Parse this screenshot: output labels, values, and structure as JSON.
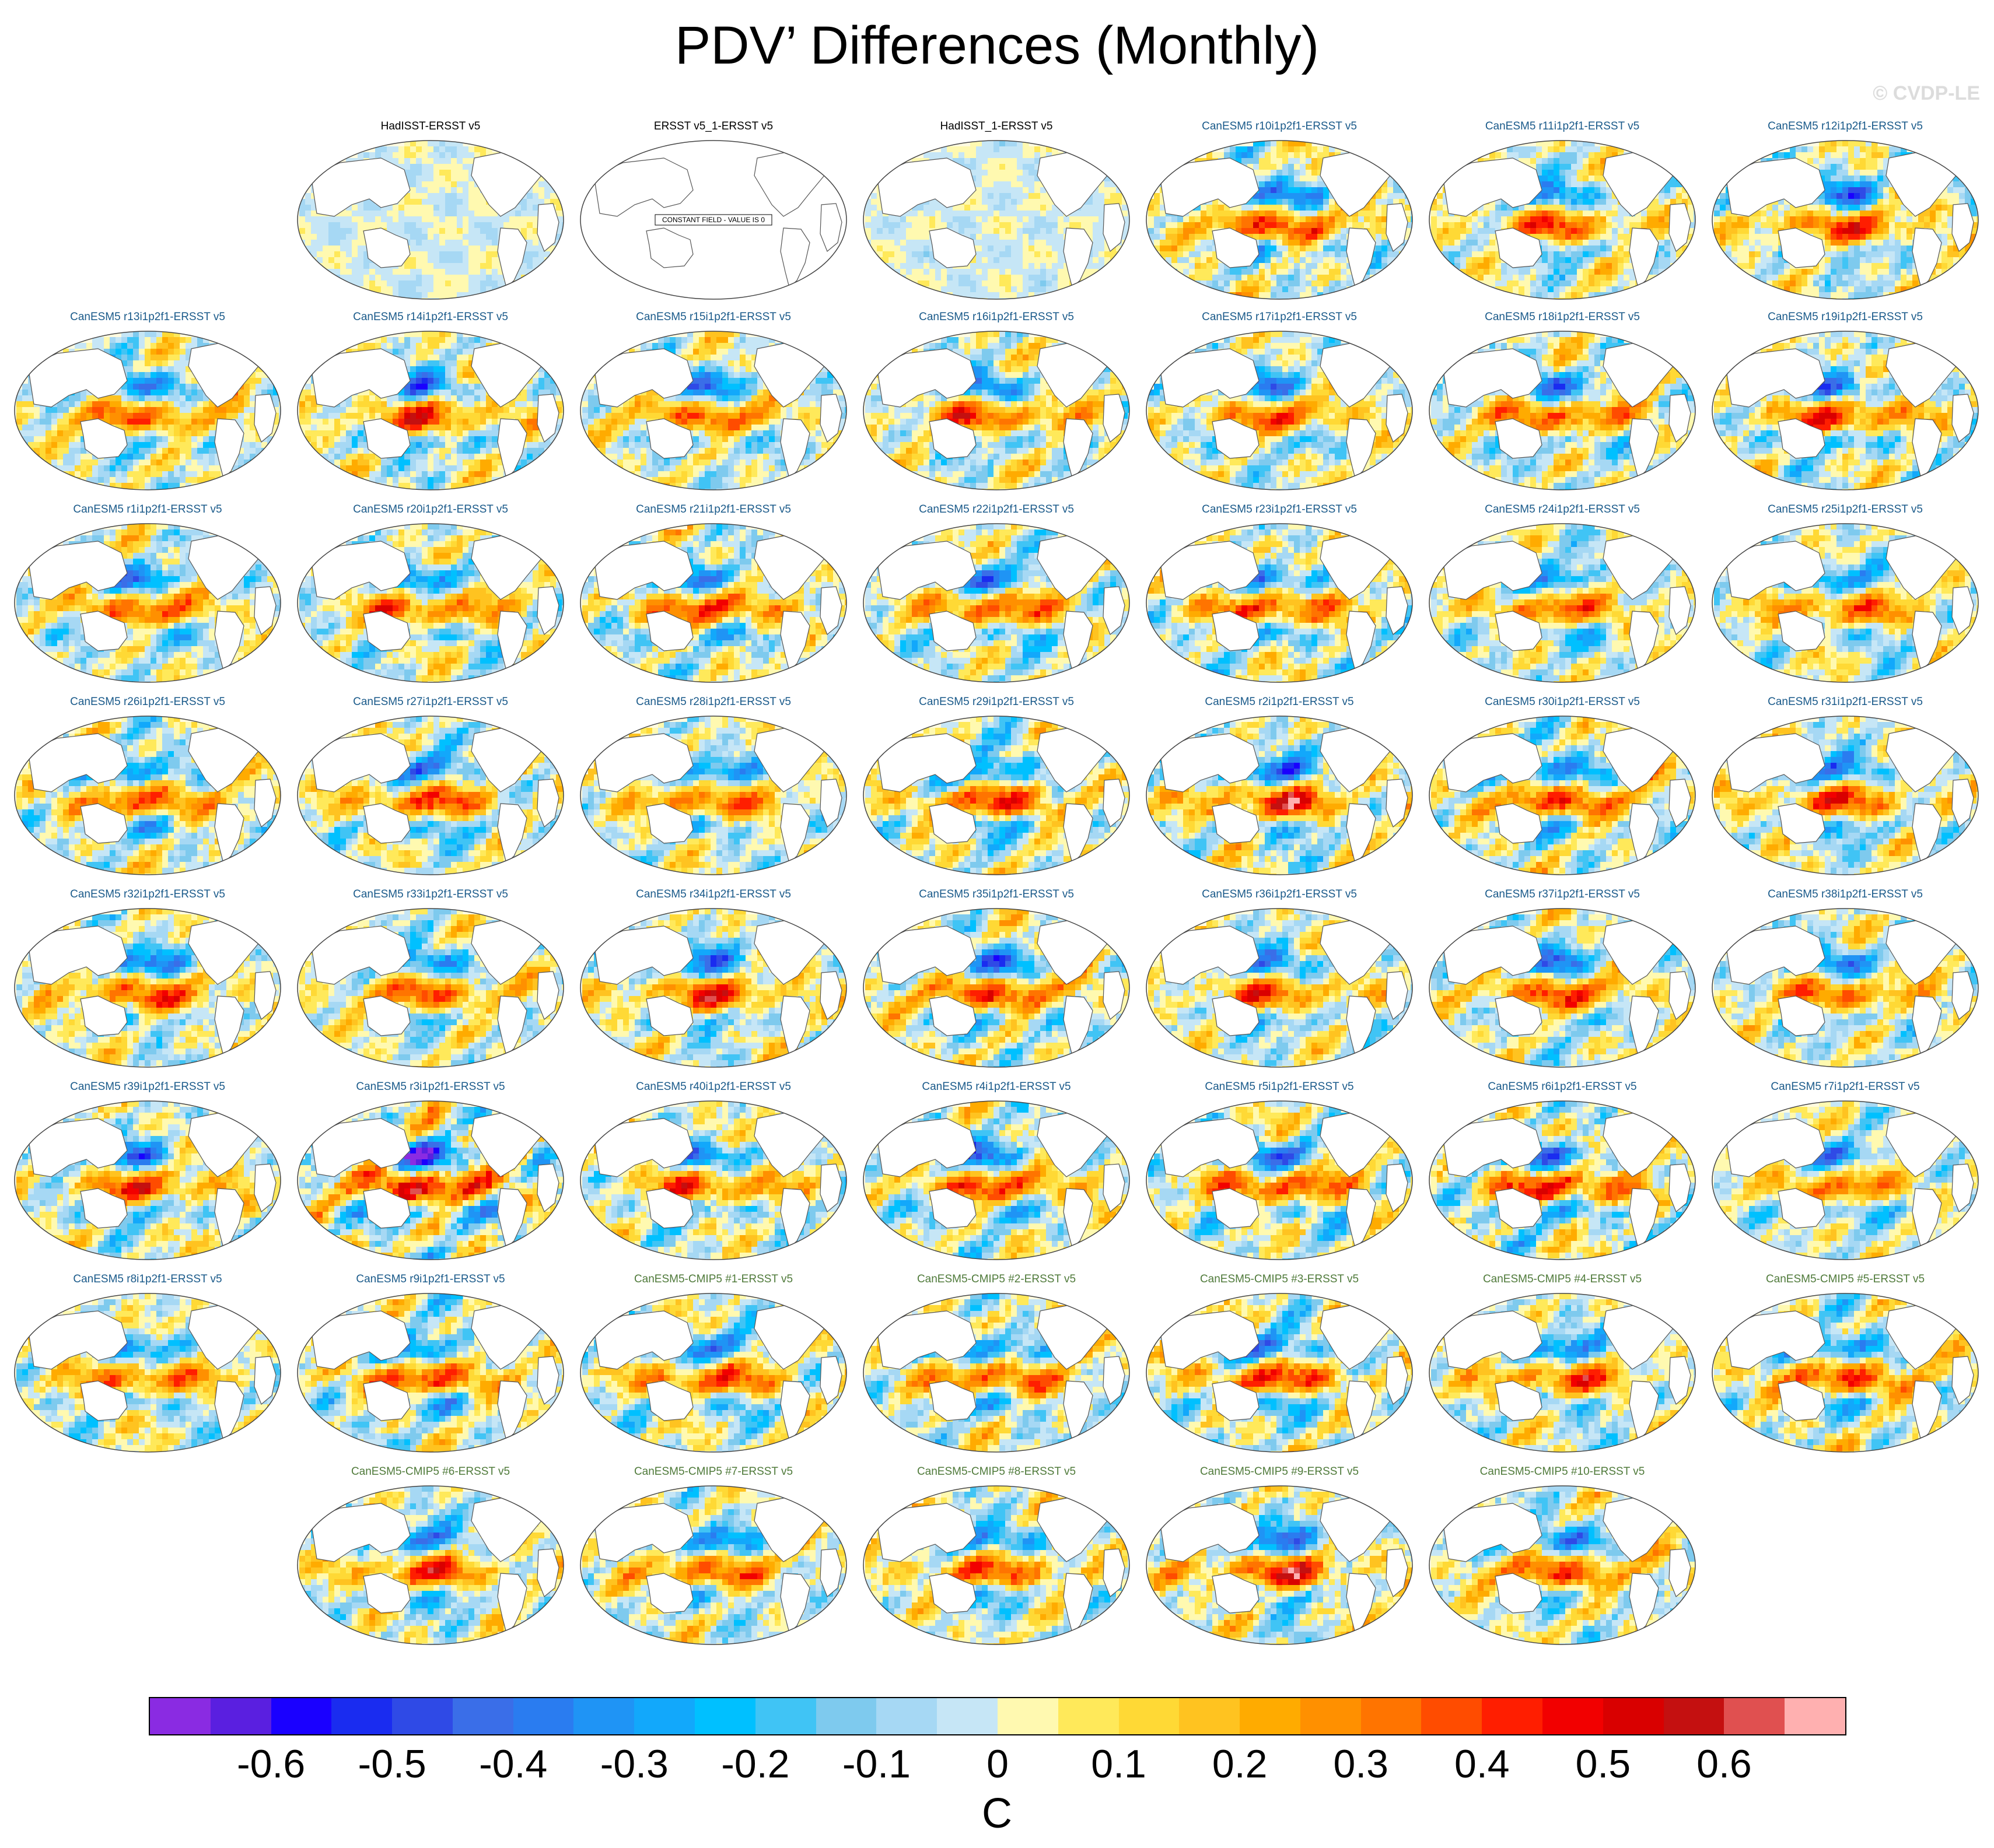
{
  "title": "PDV’ Differences (Monthly)",
  "watermark": "© CVDP-LE",
  "colors": {
    "obs_title": "#000000",
    "canesm5_title": "#1a5a8a",
    "cmip5_title": "#4f7a3a",
    "map_outline": "#444444",
    "coast": "#555555"
  },
  "chart_data": {
    "type": "heatmap",
    "title": "PDV’ Differences (Monthly)",
    "colorbar": {
      "units": "C",
      "tick_labels": [
        "-0.6",
        "-0.5",
        "-0.4",
        "-0.3",
        "-0.2",
        "-0.1",
        "0",
        "0.1",
        "0.2",
        "0.3",
        "0.4",
        "0.5",
        "0.6"
      ],
      "range": [
        -0.7,
        0.7
      ],
      "step": 0.05,
      "colors": [
        "#8a2be2",
        "#5a1fe0",
        "#1a00ff",
        "#1a2cf0",
        "#2f4ae6",
        "#3a6ee8",
        "#2a7cf0",
        "#1f94f5",
        "#12a8fb",
        "#00c0ff",
        "#40c4f5",
        "#7ecaee",
        "#a6d8f4",
        "#c6e6f6",
        "#fff9b0",
        "#ffe95a",
        "#ffd935",
        "#ffc320",
        "#ffab00",
        "#ff9000",
        "#ff7400",
        "#ff4c00",
        "#ff1e00",
        "#f20000",
        "#d90000",
        "#c41010",
        "#e05050",
        "#ffb0b0"
      ]
    },
    "rows": [
      [
        {
          "label": "HadISST-ERSST v5",
          "group": "obs",
          "intensity": 0.35,
          "seed": 1,
          "constant": false
        },
        {
          "label": "ERSST v5_1-ERSST v5",
          "group": "obs",
          "intensity": 0,
          "seed": 2,
          "constant": true,
          "note": "CONSTANT FIELD - VALUE IS 0"
        },
        {
          "label": "HadISST_1-ERSST v5",
          "group": "obs",
          "intensity": 0.35,
          "seed": 3,
          "constant": false
        },
        {
          "label": "CanESM5 r10i1p2f1-ERSST v5",
          "group": "canesm5",
          "intensity": 0.8,
          "seed": 4
        },
        {
          "label": "CanESM5 r11i1p2f1-ERSST v5",
          "group": "canesm5",
          "intensity": 0.7,
          "seed": 5
        },
        {
          "label": "CanESM5 r12i1p2f1-ERSST v5",
          "group": "canesm5",
          "intensity": 0.75,
          "seed": 6
        }
      ],
      [
        {
          "label": "CanESM5 r13i1p2f1-ERSST v5",
          "group": "canesm5",
          "intensity": 0.7,
          "seed": 7
        },
        {
          "label": "CanESM5 r14i1p2f1-ERSST v5",
          "group": "canesm5",
          "intensity": 0.75,
          "seed": 8
        },
        {
          "label": "CanESM5 r15i1p2f1-ERSST v5",
          "group": "canesm5",
          "intensity": 0.7,
          "seed": 9
        },
        {
          "label": "CanESM5 r16i1p2f1-ERSST v5",
          "group": "canesm5",
          "intensity": 0.75,
          "seed": 10
        },
        {
          "label": "CanESM5 r17i1p2f1-ERSST v5",
          "group": "canesm5",
          "intensity": 0.7,
          "seed": 11
        },
        {
          "label": "CanESM5 r18i1p2f1-ERSST v5",
          "group": "canesm5",
          "intensity": 0.75,
          "seed": 12
        },
        {
          "label": "CanESM5 r19i1p2f1-ERSST v5",
          "group": "canesm5",
          "intensity": 0.8,
          "seed": 13
        }
      ],
      [
        {
          "label": "CanESM5 r1i1p2f1-ERSST v5",
          "group": "canesm5",
          "intensity": 0.7,
          "seed": 14
        },
        {
          "label": "CanESM5 r20i1p2f1-ERSST v5",
          "group": "canesm5",
          "intensity": 0.75,
          "seed": 15
        },
        {
          "label": "CanESM5 r21i1p2f1-ERSST v5",
          "group": "canesm5",
          "intensity": 0.8,
          "seed": 16
        },
        {
          "label": "CanESM5 r22i1p2f1-ERSST v5",
          "group": "canesm5",
          "intensity": 0.75,
          "seed": 17
        },
        {
          "label": "CanESM5 r23i1p2f1-ERSST v5",
          "group": "canesm5",
          "intensity": 0.8,
          "seed": 18
        },
        {
          "label": "CanESM5 r24i1p2f1-ERSST v5",
          "group": "canesm5",
          "intensity": 0.7,
          "seed": 19
        },
        {
          "label": "CanESM5 r25i1p2f1-ERSST v5",
          "group": "canesm5",
          "intensity": 0.7,
          "seed": 20
        }
      ],
      [
        {
          "label": "CanESM5 r26i1p2f1-ERSST v5",
          "group": "canesm5",
          "intensity": 0.75,
          "seed": 21
        },
        {
          "label": "CanESM5 r27i1p2f1-ERSST v5",
          "group": "canesm5",
          "intensity": 0.75,
          "seed": 22
        },
        {
          "label": "CanESM5 r28i1p2f1-ERSST v5",
          "group": "canesm5",
          "intensity": 0.7,
          "seed": 23
        },
        {
          "label": "CanESM5 r29i1p2f1-ERSST v5",
          "group": "canesm5",
          "intensity": 0.8,
          "seed": 24
        },
        {
          "label": "CanESM5 r2i1p2f1-ERSST v5",
          "group": "canesm5",
          "intensity": 0.85,
          "seed": 25
        },
        {
          "label": "CanESM5 r30i1p2f1-ERSST v5",
          "group": "canesm5",
          "intensity": 0.8,
          "seed": 26
        },
        {
          "label": "CanESM5 r31i1p2f1-ERSST v5",
          "group": "canesm5",
          "intensity": 0.75,
          "seed": 27
        }
      ],
      [
        {
          "label": "CanESM5 r32i1p2f1-ERSST v5",
          "group": "canesm5",
          "intensity": 0.75,
          "seed": 28
        },
        {
          "label": "CanESM5 r33i1p2f1-ERSST v5",
          "group": "canesm5",
          "intensity": 0.7,
          "seed": 29
        },
        {
          "label": "CanESM5 r34i1p2f1-ERSST v5",
          "group": "canesm5",
          "intensity": 0.75,
          "seed": 30
        },
        {
          "label": "CanESM5 r35i1p2f1-ERSST v5",
          "group": "canesm5",
          "intensity": 0.8,
          "seed": 31
        },
        {
          "label": "CanESM5 r36i1p2f1-ERSST v5",
          "group": "canesm5",
          "intensity": 0.7,
          "seed": 32
        },
        {
          "label": "CanESM5 r37i1p2f1-ERSST v5",
          "group": "canesm5",
          "intensity": 0.75,
          "seed": 33
        },
        {
          "label": "CanESM5 r38i1p2f1-ERSST v5",
          "group": "canesm5",
          "intensity": 0.7,
          "seed": 34
        }
      ],
      [
        {
          "label": "CanESM5 r39i1p2f1-ERSST v5",
          "group": "canesm5",
          "intensity": 0.75,
          "seed": 35
        },
        {
          "label": "CanESM5 r3i1p2f1-ERSST v5",
          "group": "canesm5",
          "intensity": 1.0,
          "seed": 36
        },
        {
          "label": "CanESM5 r40i1p2f1-ERSST v5",
          "group": "canesm5",
          "intensity": 0.75,
          "seed": 37
        },
        {
          "label": "CanESM5 r4i1p2f1-ERSST v5",
          "group": "canesm5",
          "intensity": 0.8,
          "seed": 38
        },
        {
          "label": "CanESM5 r5i1p2f1-ERSST v5",
          "group": "canesm5",
          "intensity": 0.8,
          "seed": 39
        },
        {
          "label": "CanESM5 r6i1p2f1-ERSST v5",
          "group": "canesm5",
          "intensity": 0.9,
          "seed": 40
        },
        {
          "label": "CanESM5 r7i1p2f1-ERSST v5",
          "group": "canesm5",
          "intensity": 0.65,
          "seed": 41
        }
      ],
      [
        {
          "label": "CanESM5 r8i1p2f1-ERSST v5",
          "group": "canesm5",
          "intensity": 0.7,
          "seed": 42
        },
        {
          "label": "CanESM5 r9i1p2f1-ERSST v5",
          "group": "canesm5",
          "intensity": 0.8,
          "seed": 43
        },
        {
          "label": "CanESM5-CMIP5 #1-ERSST v5",
          "group": "cmip5",
          "intensity": 0.75,
          "seed": 44
        },
        {
          "label": "CanESM5-CMIP5 #2-ERSST v5",
          "group": "cmip5",
          "intensity": 0.75,
          "seed": 45
        },
        {
          "label": "CanESM5-CMIP5 #3-ERSST v5",
          "group": "cmip5",
          "intensity": 0.8,
          "seed": 46
        },
        {
          "label": "CanESM5-CMIP5 #4-ERSST v5",
          "group": "cmip5",
          "intensity": 0.75,
          "seed": 47
        },
        {
          "label": "CanESM5-CMIP5 #5-ERSST v5",
          "group": "cmip5",
          "intensity": 0.8,
          "seed": 48
        }
      ],
      [
        {
          "label": "CanESM5-CMIP5 #6-ERSST v5",
          "group": "cmip5",
          "intensity": 0.75,
          "seed": 49
        },
        {
          "label": "CanESM5-CMIP5 #7-ERSST v5",
          "group": "cmip5",
          "intensity": 0.7,
          "seed": 50
        },
        {
          "label": "CanESM5-CMIP5 #8-ERSST v5",
          "group": "cmip5",
          "intensity": 0.75,
          "seed": 51
        },
        {
          "label": "CanESM5-CMIP5 #9-ERSST v5",
          "group": "cmip5",
          "intensity": 0.85,
          "seed": 52
        },
        {
          "label": "CanESM5-CMIP5 #10-ERSST v5",
          "group": "cmip5",
          "intensity": 0.75,
          "seed": 53
        }
      ]
    ]
  }
}
